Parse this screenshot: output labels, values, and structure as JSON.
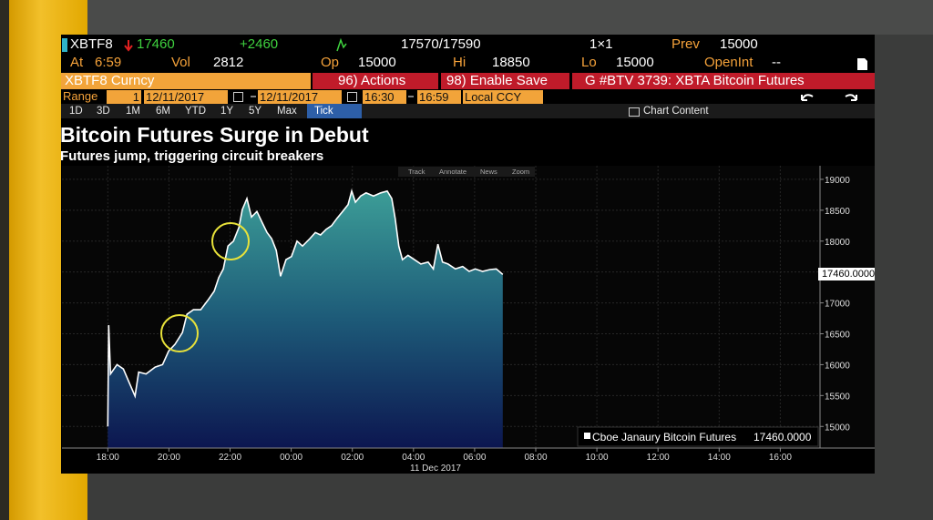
{
  "terminal": {
    "row1": {
      "ticker": "XBTF8",
      "last": "17460",
      "change": "+2460",
      "bid_ask": "17570/17590",
      "size": "1×1",
      "prev_label": "Prev",
      "prev": "15000"
    },
    "row2": {
      "at_label": "At",
      "time": "6:59",
      "vol_label": "Vol",
      "vol": "2812",
      "op_label": "Op",
      "op": "15000",
      "hi_label": "Hi",
      "hi": "18850",
      "lo_label": "Lo",
      "lo": "15000",
      "oi_label": "OpenInt",
      "oi": "--"
    },
    "row3": {
      "security": "XBTF8 Curncy",
      "actions": "96) Actions",
      "save": "98) Enable Save",
      "story": "G #BTV 3739: XBTA Bitcoin Futures"
    },
    "row4": {
      "range_label": "Range",
      "period": "1",
      "start_date": "12/11/2017",
      "end_date": "12/11/2017",
      "start_time": "16:30",
      "end_time": "16:59",
      "currency": "Local CCY"
    },
    "row5": {
      "periods": [
        "1D",
        "3D",
        "1M",
        "6M",
        "YTD",
        "1Y",
        "5Y",
        "Max"
      ],
      "tick": "Tick",
      "chart_content": "Chart Content"
    },
    "tools": [
      "Track",
      "Annotate",
      "News",
      "Zoom"
    ]
  },
  "chart_data": {
    "type": "area",
    "title": "Bitcoin Futures Surge in Debut",
    "subtitle": "Futures jump, triggering circuit breakers",
    "x_annotation": "11 Dec 2017",
    "xlim": [
      -1.5,
      23.3
    ],
    "xticks": [
      {
        "value": 0,
        "label": "18:00"
      },
      {
        "value": 2,
        "label": "20:00"
      },
      {
        "value": 4,
        "label": "22:00"
      },
      {
        "value": 6,
        "label": "00:00"
      },
      {
        "value": 8,
        "label": "02:00"
      },
      {
        "value": 10,
        "label": "04:00"
      },
      {
        "value": 12,
        "label": "06:00"
      },
      {
        "value": 14,
        "label": "08:00"
      },
      {
        "value": 16,
        "label": "10:00"
      },
      {
        "value": 18,
        "label": "12:00"
      },
      {
        "value": 20,
        "label": "14:00"
      },
      {
        "value": 22,
        "label": "16:00"
      }
    ],
    "ylim": [
      14650,
      19220
    ],
    "yticks": [
      15000,
      15500,
      16000,
      16500,
      17000,
      17500,
      18000,
      18500,
      19000
    ],
    "grid": true,
    "last_price_label": "17460.0000",
    "legend_value": "17460.0000",
    "series": [
      {
        "name": "Cboe Janaury Bitcoin Futures",
        "color": "#ffffff",
        "x": [
          0,
          0.03,
          0.09,
          0.3,
          0.51,
          0.71,
          0.89,
          1.01,
          1.25,
          1.55,
          1.79,
          1.99,
          2.2,
          2.44,
          2.59,
          2.8,
          3.04,
          3.27,
          3.48,
          3.63,
          3.78,
          3.93,
          4.11,
          4.29,
          4.4,
          4.55,
          4.7,
          4.88,
          5.06,
          5.21,
          5.36,
          5.51,
          5.65,
          5.83,
          6.01,
          6.19,
          6.37,
          6.61,
          6.79,
          6.96,
          7.14,
          7.32,
          7.5,
          7.68,
          7.86,
          7.98,
          8.1,
          8.27,
          8.45,
          8.69,
          8.93,
          9.14,
          9.29,
          9.4,
          9.52,
          9.64,
          9.82,
          10.03,
          10.24,
          10.48,
          10.65,
          10.8,
          10.95,
          11.13,
          11.37,
          11.61,
          11.82,
          12.02,
          12.26,
          12.5,
          12.71,
          12.92
        ],
        "values": [
          15000,
          16640,
          15850,
          16000,
          15930,
          15700,
          15490,
          15880,
          15850,
          15960,
          16000,
          16220,
          16330,
          16520,
          16815,
          16890,
          16890,
          17040,
          17190,
          17410,
          17550,
          17920,
          18000,
          18220,
          18510,
          18690,
          18390,
          18480,
          18290,
          18140,
          18040,
          17850,
          17430,
          17700,
          17750,
          18000,
          17920,
          18040,
          18140,
          18100,
          18190,
          18250,
          18370,
          18480,
          18590,
          18810,
          18630,
          18730,
          18780,
          18730,
          18780,
          18810,
          18690,
          18370,
          17920,
          17700,
          17770,
          17700,
          17630,
          17660,
          17550,
          17950,
          17660,
          17630,
          17550,
          17590,
          17510,
          17550,
          17510,
          17540,
          17550,
          17460
        ]
      }
    ]
  }
}
